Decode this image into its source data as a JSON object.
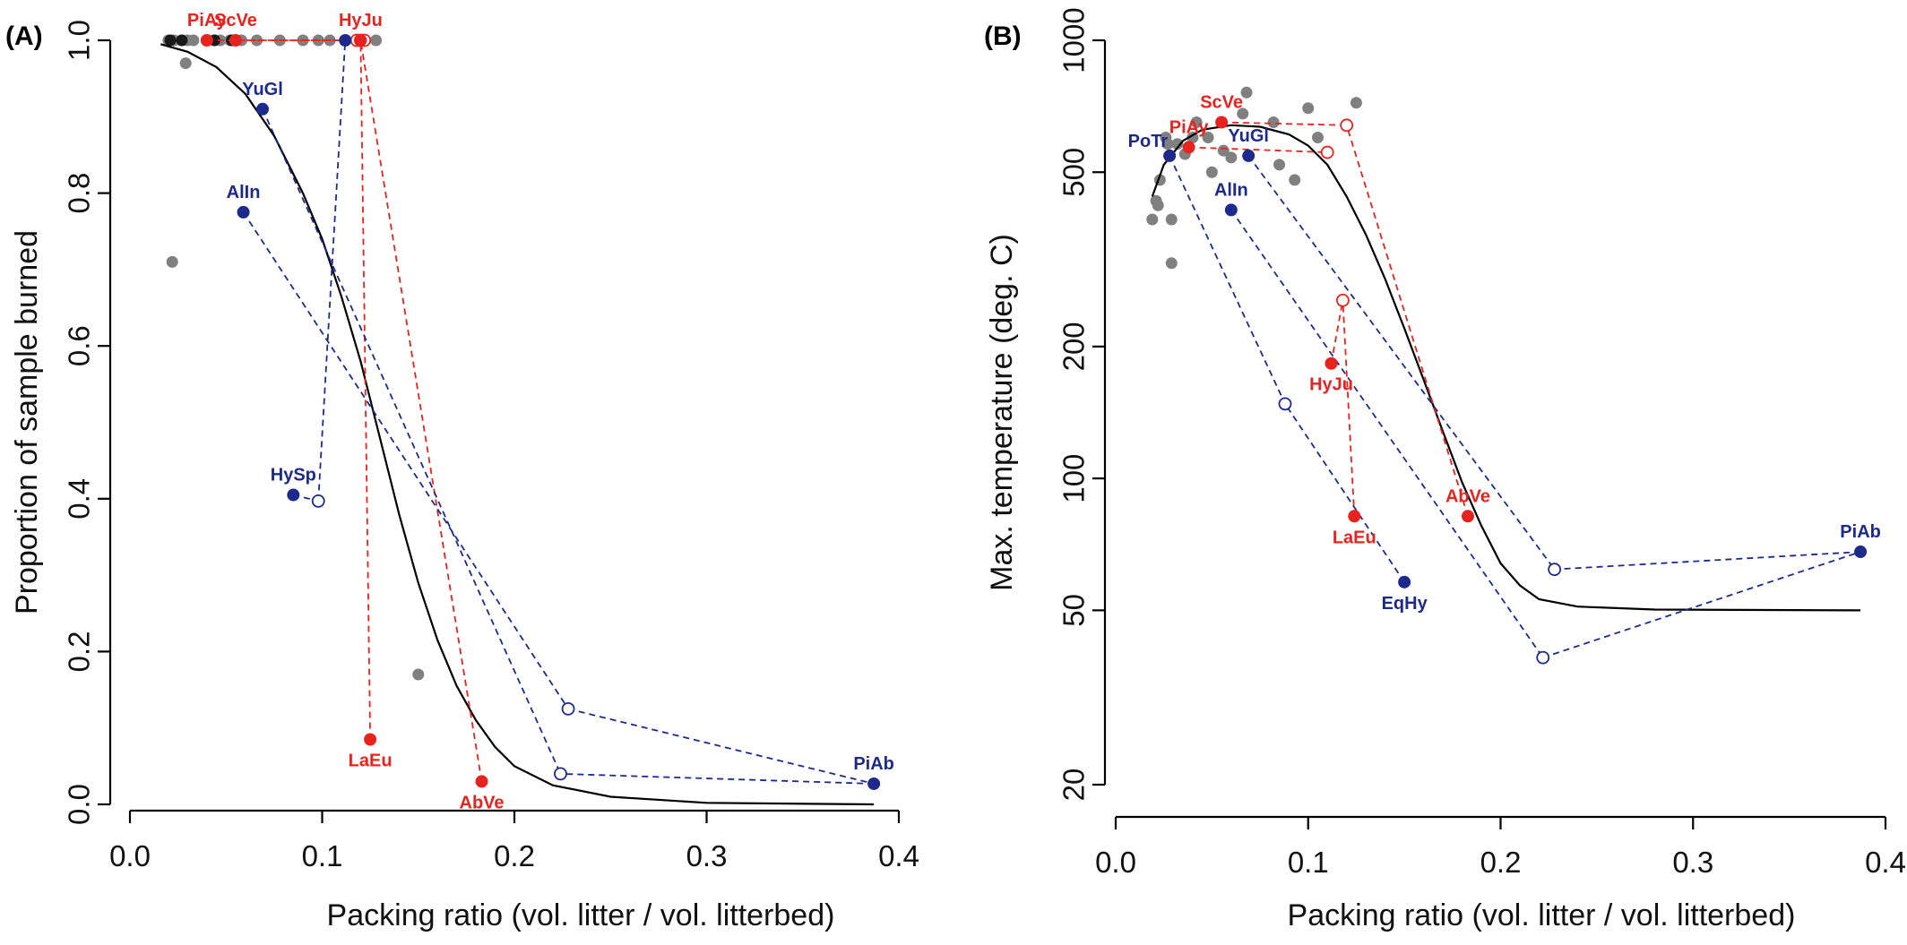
{
  "colors": {
    "red": "#e8231f",
    "blue": "#1d2a8c",
    "gray": "#808080",
    "black": "#000000"
  },
  "chart_data": [
    {
      "type": "scatter",
      "panel_label": "(A)",
      "xlabel": "Packing ratio (vol. litter / vol. litterbed)",
      "ylabel": "Proportion of sample burned",
      "xlim": [
        0,
        0.4
      ],
      "ylim": [
        0,
        1
      ],
      "y_scale": "linear",
      "x_ticks": [
        "0.0",
        "0.1",
        "0.2",
        "0.3",
        "0.4"
      ],
      "x_tick_values": [
        0,
        0.1,
        0.2,
        0.3,
        0.4
      ],
      "y_ticks": [
        "0.0",
        "0.2",
        "0.4",
        "0.6",
        "0.8",
        "1.0"
      ],
      "y_tick_values": [
        0,
        0.2,
        0.4,
        0.6,
        0.8,
        1.0
      ],
      "gray_points": [
        [
          0.02,
          1.0
        ],
        [
          0.023,
          1.0
        ],
        [
          0.027,
          1.0
        ],
        [
          0.03,
          1.0
        ],
        [
          0.033,
          1.0
        ],
        [
          0.04,
          1.0
        ],
        [
          0.044,
          1.0
        ],
        [
          0.047,
          1.0
        ],
        [
          0.052,
          1.0
        ],
        [
          0.058,
          1.0
        ],
        [
          0.066,
          1.0
        ],
        [
          0.078,
          1.0
        ],
        [
          0.09,
          1.0
        ],
        [
          0.098,
          1.0
        ],
        [
          0.104,
          1.0
        ],
        [
          0.128,
          1.0
        ],
        [
          0.029,
          0.97
        ],
        [
          0.022,
          0.71
        ],
        [
          0.15,
          0.17
        ]
      ],
      "black_points": [
        [
          0.021,
          1.0
        ],
        [
          0.027,
          1.0
        ],
        [
          0.044,
          1.0
        ],
        [
          0.053,
          1.0
        ]
      ],
      "fit_curve": [
        [
          0.016,
          0.995
        ],
        [
          0.03,
          0.985
        ],
        [
          0.045,
          0.965
        ],
        [
          0.06,
          0.93
        ],
        [
          0.075,
          0.875
        ],
        [
          0.09,
          0.8
        ],
        [
          0.1,
          0.74
        ],
        [
          0.11,
          0.665
        ],
        [
          0.12,
          0.58
        ],
        [
          0.13,
          0.48
        ],
        [
          0.14,
          0.38
        ],
        [
          0.15,
          0.29
        ],
        [
          0.16,
          0.215
        ],
        [
          0.17,
          0.155
        ],
        [
          0.18,
          0.11
        ],
        [
          0.19,
          0.075
        ],
        [
          0.2,
          0.05
        ],
        [
          0.22,
          0.025
        ],
        [
          0.25,
          0.01
        ],
        [
          0.3,
          0.002
        ],
        [
          0.387,
          0.0
        ]
      ],
      "species": [
        {
          "name": "PiAy",
          "color": "red",
          "point": [
            0.04,
            1.0
          ],
          "open": [
            0.118,
            1.0
          ],
          "label_pos": "above"
        },
        {
          "name": "ScVe",
          "color": "red",
          "point": [
            0.055,
            1.0
          ],
          "open": [
            0.12,
            1.0
          ],
          "label_pos": "above"
        },
        {
          "name": "HyJu",
          "color": "red",
          "point": [
            0.12,
            1.0
          ],
          "open": [
            0.122,
            1.0
          ],
          "label_pos": "above"
        },
        {
          "name": "LaEu",
          "color": "red",
          "point": [
            0.125,
            0.085
          ],
          "open": [
            0.12,
            1.0
          ],
          "label_pos": "below"
        },
        {
          "name": "AbVe",
          "color": "red",
          "point": [
            0.183,
            0.03
          ],
          "open": [
            0.12,
            1.0
          ],
          "label_pos": "below"
        },
        {
          "name": "YuGl",
          "color": "blue",
          "point": [
            0.069,
            0.91
          ],
          "open": [
            0.224,
            0.04
          ],
          "label_pos": "above"
        },
        {
          "name": "AlIn",
          "color": "blue",
          "point": [
            0.059,
            0.775
          ],
          "open": [
            0.228,
            0.125
          ],
          "label_pos": "above"
        },
        {
          "name": "HySp",
          "color": "blue",
          "point": [
            0.085,
            0.405
          ],
          "open": [
            0.098,
            0.397
          ],
          "label_pos": "above"
        },
        {
          "name": "PiAb",
          "color": "blue",
          "point": [
            0.387,
            0.027
          ],
          "open": [
            0.224,
            0.04
          ],
          "label_pos": "above"
        }
      ],
      "extra_blue_links": [
        {
          "from": [
            0.098,
            0.397
          ],
          "to": [
            0.112,
            1.0
          ]
        },
        {
          "from": [
            0.228,
            0.125
          ],
          "to": [
            0.387,
            0.027
          ]
        }
      ],
      "extra_blue_point": [
        0.112,
        1.0
      ]
    },
    {
      "type": "scatter",
      "panel_label": "(B)",
      "xlabel": "Packing ratio (vol. litter / vol. litterbed)",
      "ylabel": "Max. temperature (deg. C)",
      "xlim": [
        0,
        0.4
      ],
      "ylim": [
        20,
        1000
      ],
      "y_scale": "log",
      "x_ticks": [
        "0.0",
        "0.1",
        "0.2",
        "0.3",
        "0.4"
      ],
      "x_tick_values": [
        0,
        0.1,
        0.2,
        0.3,
        0.4
      ],
      "y_ticks": [
        "20",
        "50",
        "100",
        "200",
        "500",
        "1000"
      ],
      "y_tick_values": [
        20,
        50,
        100,
        200,
        500,
        1000
      ],
      "gray_points": [
        [
          0.019,
          390
        ],
        [
          0.021,
          430
        ],
        [
          0.022,
          420
        ],
        [
          0.023,
          480
        ],
        [
          0.026,
          600
        ],
        [
          0.027,
          580
        ],
        [
          0.029,
          310
        ],
        [
          0.029,
          390
        ],
        [
          0.032,
          580
        ],
        [
          0.036,
          550
        ],
        [
          0.04,
          600
        ],
        [
          0.042,
          650
        ],
        [
          0.048,
          600
        ],
        [
          0.05,
          500
        ],
        [
          0.056,
          560
        ],
        [
          0.06,
          540
        ],
        [
          0.066,
          680
        ],
        [
          0.068,
          760
        ],
        [
          0.082,
          650
        ],
        [
          0.085,
          520
        ],
        [
          0.093,
          480
        ],
        [
          0.1,
          700
        ],
        [
          0.105,
          600
        ],
        [
          0.125,
          720
        ]
      ],
      "fit_curve": [
        [
          0.019,
          440
        ],
        [
          0.025,
          520
        ],
        [
          0.035,
          590
        ],
        [
          0.045,
          625
        ],
        [
          0.06,
          640
        ],
        [
          0.075,
          635
        ],
        [
          0.09,
          610
        ],
        [
          0.1,
          575
        ],
        [
          0.11,
          520
        ],
        [
          0.12,
          440
        ],
        [
          0.13,
          360
        ],
        [
          0.14,
          285
        ],
        [
          0.15,
          220
        ],
        [
          0.16,
          168
        ],
        [
          0.17,
          128
        ],
        [
          0.18,
          98
        ],
        [
          0.19,
          78
        ],
        [
          0.2,
          64
        ],
        [
          0.21,
          57
        ],
        [
          0.22,
          53
        ],
        [
          0.24,
          51
        ],
        [
          0.28,
          50.2
        ],
        [
          0.387,
          50
        ]
      ],
      "species": [
        {
          "name": "ScVe",
          "color": "red",
          "point": [
            0.055,
            650
          ],
          "open": [
            0.12,
            640
          ],
          "label_pos": "above"
        },
        {
          "name": "PiAy",
          "color": "red",
          "point": [
            0.038,
            570
          ],
          "open": [
            0.11,
            555
          ],
          "label_pos": "above"
        },
        {
          "name": "HyJu",
          "color": "red",
          "point": [
            0.112,
            183
          ],
          "open": [
            0.118,
            255
          ],
          "label_pos": "below"
        },
        {
          "name": "LaEu",
          "color": "red",
          "point": [
            0.124,
            82
          ],
          "open": [
            0.118,
            255
          ],
          "label_pos": "below"
        },
        {
          "name": "AbVe",
          "color": "red",
          "point": [
            0.183,
            82
          ],
          "open": [
            0.12,
            640
          ],
          "label_pos": "above"
        },
        {
          "name": "PoTr",
          "color": "blue",
          "point": [
            0.028,
            545
          ],
          "open": [
            0.088,
            148
          ],
          "label_pos": "above-left"
        },
        {
          "name": "YuGl",
          "color": "blue",
          "point": [
            0.069,
            545
          ],
          "open": [
            0.228,
            62
          ],
          "label_pos": "above"
        },
        {
          "name": "AlIn",
          "color": "blue",
          "point": [
            0.06,
            410
          ],
          "open": [
            0.222,
            39
          ],
          "label_pos": "above"
        },
        {
          "name": "EqHy",
          "color": "blue",
          "point": [
            0.15,
            58
          ],
          "open": [
            0.088,
            148
          ],
          "label_pos": "below"
        },
        {
          "name": "PiAb",
          "color": "blue",
          "point": [
            0.387,
            68
          ],
          "open": [
            0.228,
            62
          ],
          "label_pos": "above"
        }
      ],
      "extra_blue_links": [
        {
          "from": [
            0.222,
            39
          ],
          "to": [
            0.387,
            68
          ]
        }
      ]
    }
  ]
}
